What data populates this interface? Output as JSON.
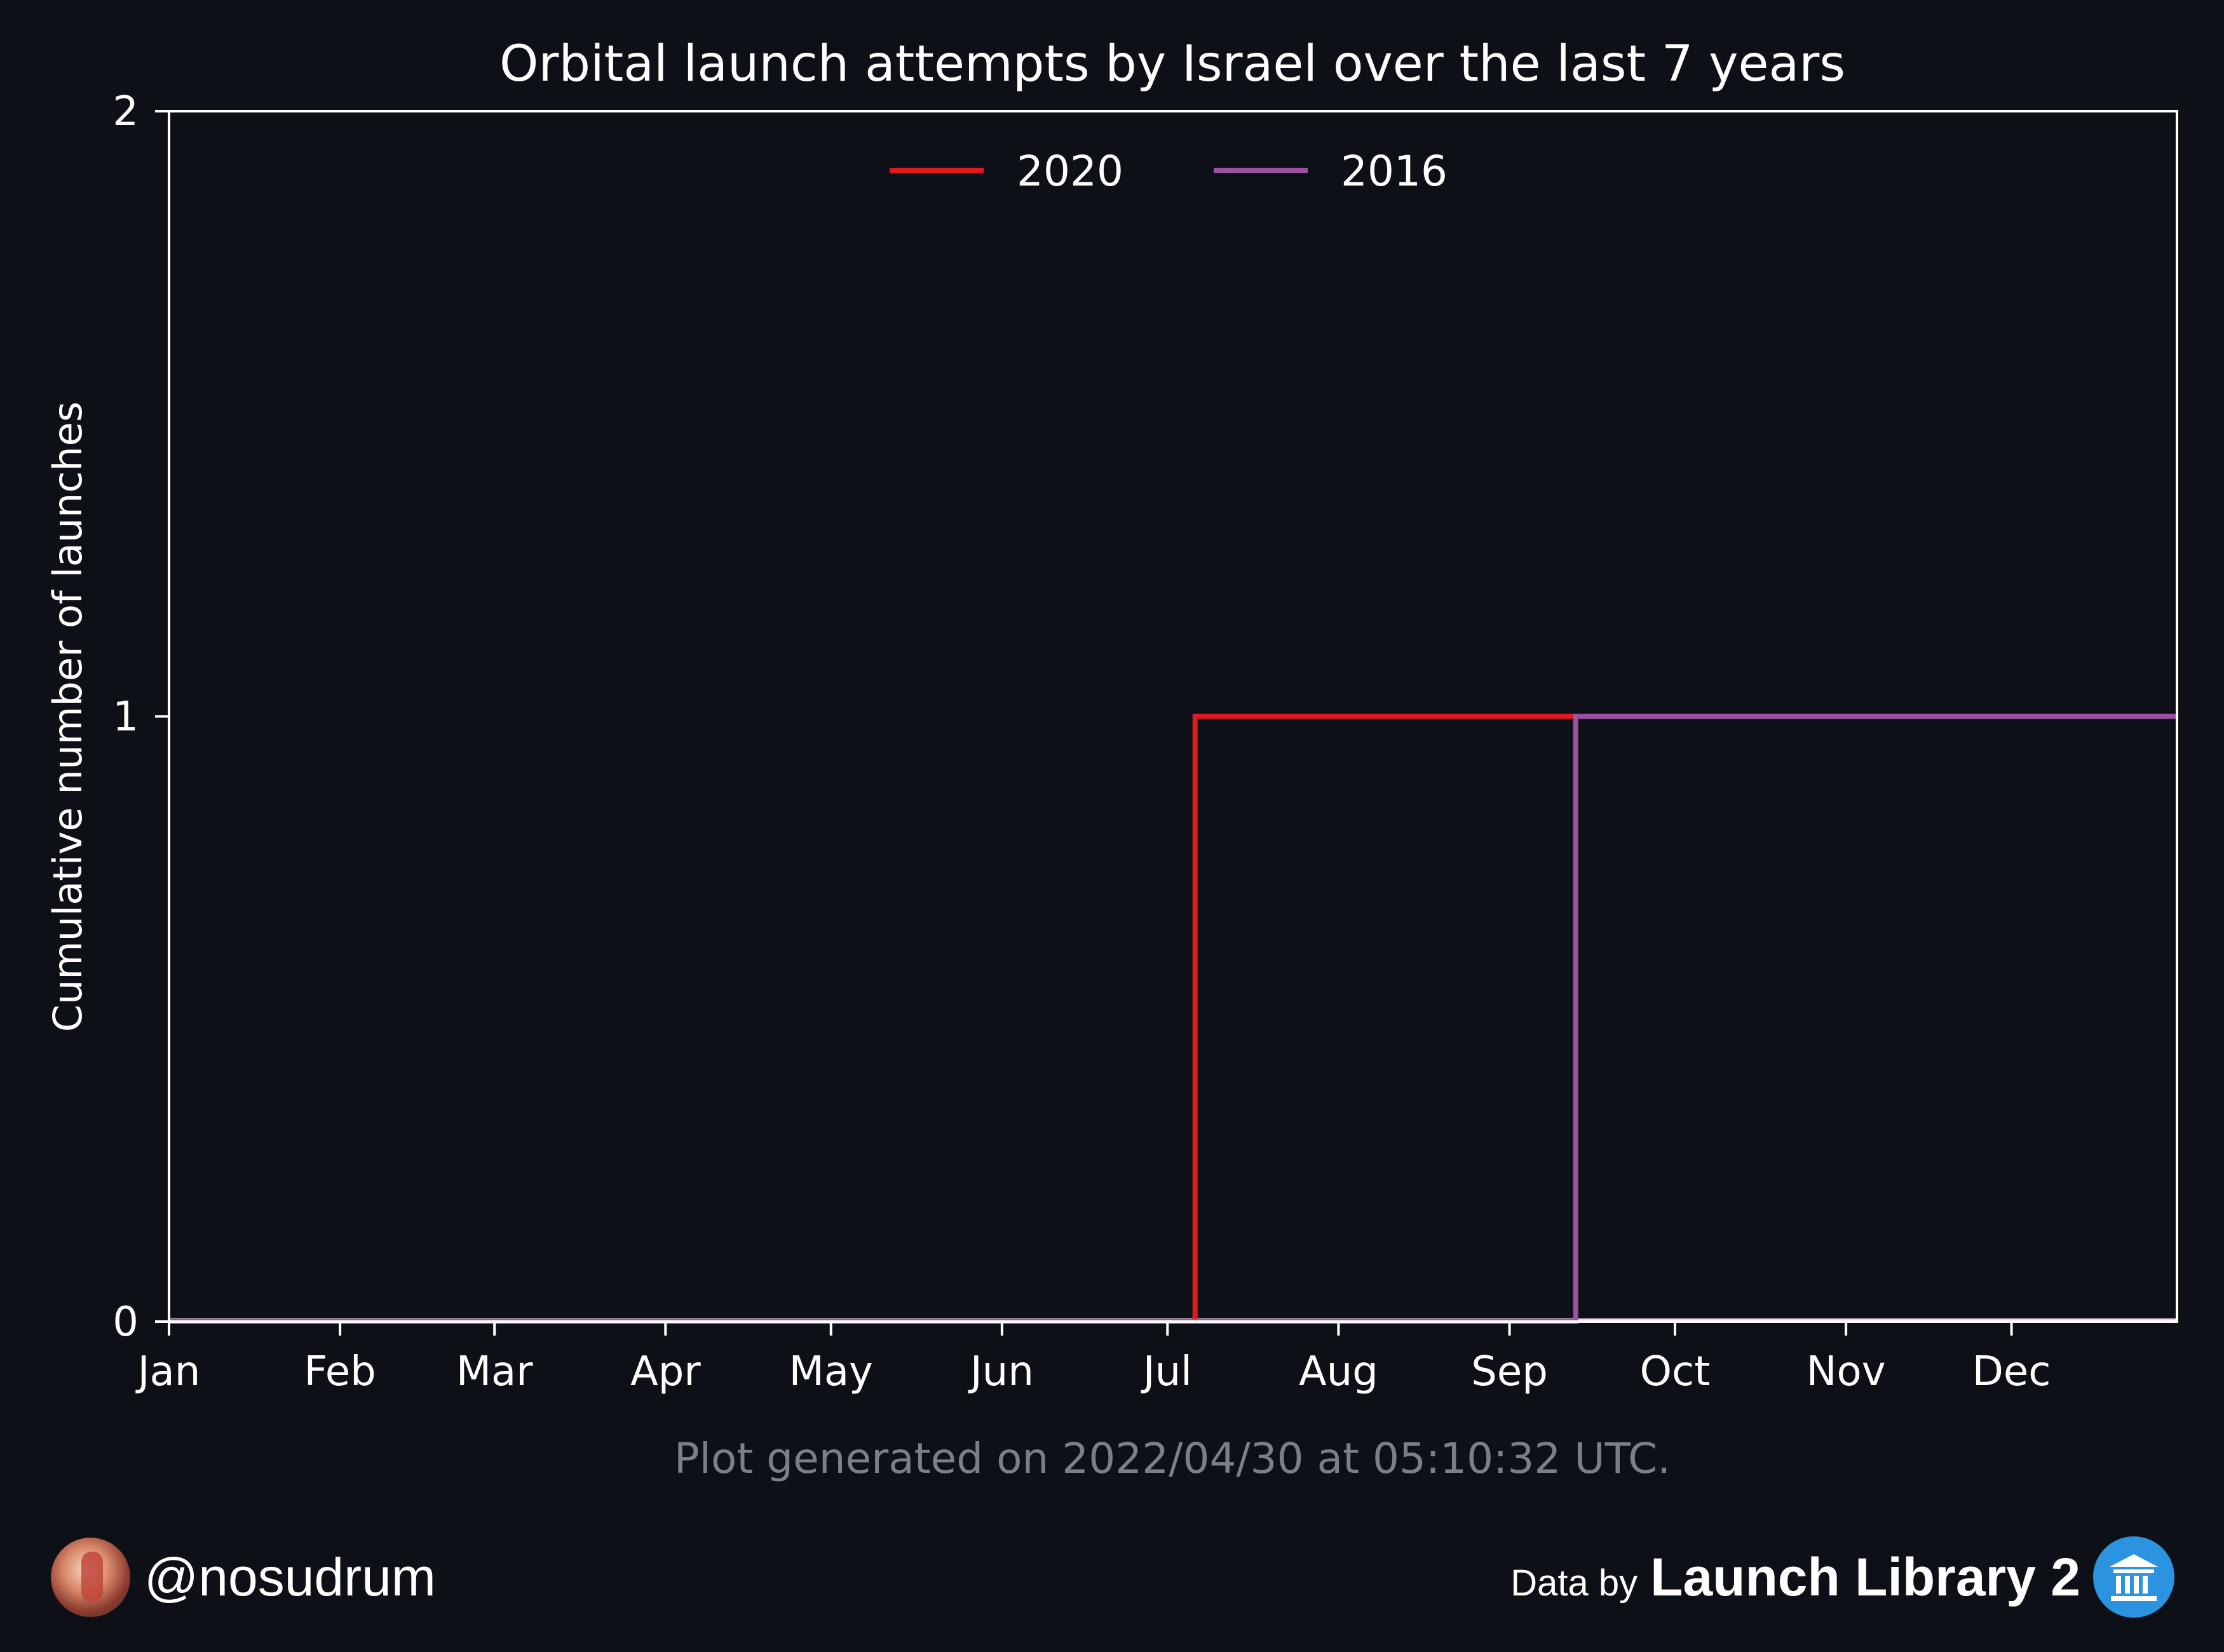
{
  "chart_data": {
    "type": "line",
    "step": true,
    "title": "Orbital launch attempts by Israel over the last 7 years",
    "xlabel": "",
    "ylabel": "Cumulative number of launches",
    "x_ticks": [
      "Jan",
      "Feb",
      "Mar",
      "Apr",
      "May",
      "Jun",
      "Jul",
      "Aug",
      "Sep",
      "Oct",
      "Nov",
      "Dec"
    ],
    "y_ticks": [
      "0",
      "1",
      "2"
    ],
    "xlim": [
      "Jan 1",
      "Dec 31"
    ],
    "ylim": [
      0,
      2
    ],
    "grid": false,
    "legend_position": "top-center",
    "series": [
      {
        "name": "2020",
        "color": "#e0191e",
        "points": [
          {
            "x": "Jan 1",
            "y": 0
          },
          {
            "x": "Jul 6",
            "y": 1
          },
          {
            "x": "Dec 31",
            "y": 1
          }
        ]
      },
      {
        "name": "2016",
        "color": "#9b51a0",
        "points": [
          {
            "x": "Jan 1",
            "y": 0
          },
          {
            "x": "Sep 13",
            "y": 1
          },
          {
            "x": "Dec 31",
            "y": 1
          }
        ]
      }
    ],
    "baseline_color": "#f7c8f0",
    "annotation": "Plot generated on 2022/04/30 at 05:10:32 UTC."
  },
  "footer": {
    "handle": "@nosudrum",
    "data_by": "Data by",
    "source": "Launch Library 2",
    "avatar_icon": "avatar-astronaut",
    "source_icon": "library-building-icon"
  }
}
